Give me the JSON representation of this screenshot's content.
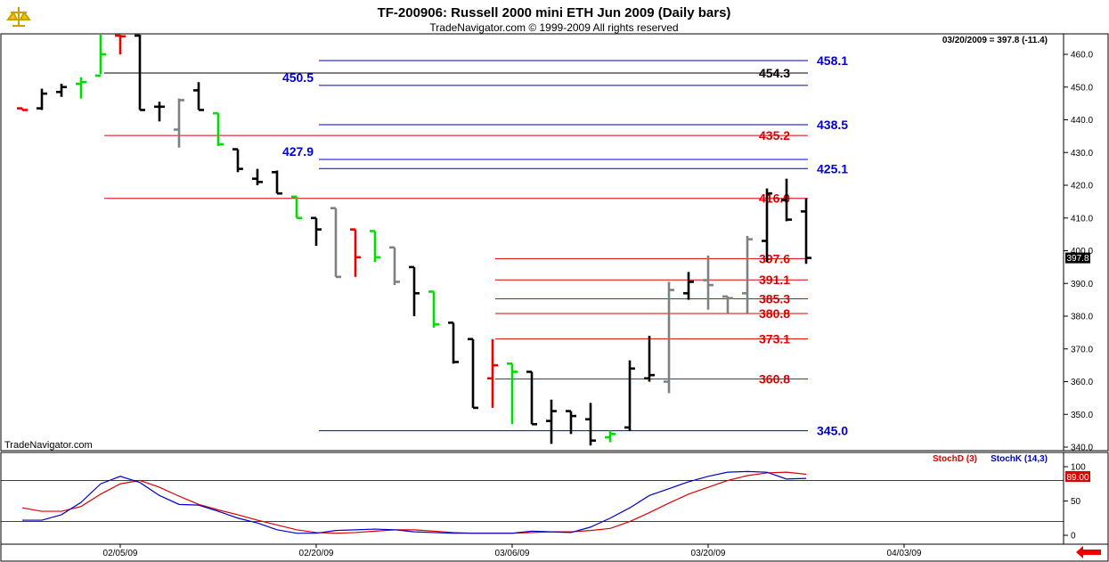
{
  "header": {
    "title": "TF-200906:  Russell 2000 mini ETH Jun 2009  (Daily bars)",
    "copyright": "TradeNavigator.com © 1999-2009 All rights reserved",
    "last_quote": "03/20/2009 = 397.8 (-11.4)",
    "watermark": "TradeNavigator.com",
    "logo_icon": "scales-logo-icon",
    "scroll_icon": "red-left-arrow-icon"
  },
  "colors": {
    "up_bar": "#00dd00",
    "down_bar": "#ee0000",
    "normal_bar": "#000000",
    "inside_bar": "#808080",
    "level_blue": "#0000cc",
    "level_red": "#dd0000",
    "level_black": "#000000",
    "stoch_d": "#dd0000",
    "stoch_k": "#0000cc"
  },
  "chart_data": [
    {
      "type": "ohlc",
      "title": "TF-200906:  Russell 2000 mini ETH Jun 2009  (Daily bars)",
      "y_ticks": [
        "340.0",
        "350.0",
        "360.0",
        "370.0",
        "380.0",
        "390.0",
        "400.0",
        "410.0",
        "420.0",
        "430.0",
        "440.0",
        "450.0",
        "460.0"
      ],
      "ylim": [
        338,
        466
      ],
      "x_ticks": [
        "02/05/09",
        "02/20/09",
        "03/06/09",
        "03/20/09",
        "04/03/09"
      ],
      "x_tick_index": [
        5,
        15,
        25,
        35,
        45
      ],
      "last_price_label": "397.8",
      "bars": [
        {
          "o": 443.5,
          "h": 443.5,
          "l": 443.0,
          "c": 443.0,
          "color": "down"
        },
        {
          "o": 443.5,
          "h": 449.5,
          "l": 443.0,
          "c": 448.0,
          "color": "normal"
        },
        {
          "o": 448.5,
          "h": 451.0,
          "l": 447.0,
          "c": 450.0,
          "color": "normal"
        },
        {
          "o": 451.0,
          "h": 453.0,
          "l": 446.5,
          "c": 451.5,
          "color": "up"
        },
        {
          "o": 453.5,
          "h": 467.0,
          "l": 454.0,
          "c": 460.0,
          "color": "up"
        },
        {
          "o": 466.5,
          "h": 467.0,
          "l": 460.0,
          "c": 465.5,
          "color": "down"
        },
        {
          "o": 467.0,
          "h": 467.0,
          "l": 443.0,
          "c": 443.0,
          "color": "normal"
        },
        {
          "o": 444.0,
          "h": 445.5,
          "l": 439.5,
          "c": 444.0,
          "color": "normal"
        },
        {
          "o": 437.0,
          "h": 446.5,
          "l": 431.5,
          "c": 446.0,
          "color": "inside"
        },
        {
          "o": 449.0,
          "h": 451.5,
          "l": 443.0,
          "c": 443.0,
          "color": "normal"
        },
        {
          "o": 442.0,
          "h": 442.0,
          "l": 432.0,
          "c": 432.5,
          "color": "up"
        },
        {
          "o": 431.0,
          "h": 431.0,
          "l": 424.0,
          "c": 425.0,
          "color": "normal"
        },
        {
          "o": 422.0,
          "h": 425.0,
          "l": 420.0,
          "c": 421.0,
          "color": "normal"
        },
        {
          "o": 424.0,
          "h": 424.5,
          "l": 417.5,
          "c": 417.5,
          "color": "normal"
        },
        {
          "o": 416.5,
          "h": 416.5,
          "l": 410.0,
          "c": 410.0,
          "color": "up"
        },
        {
          "o": 410.0,
          "h": 410.0,
          "l": 401.5,
          "c": 406.5,
          "color": "normal"
        },
        {
          "o": 413.0,
          "h": 413.0,
          "l": 392.0,
          "c": 392.0,
          "color": "inside"
        },
        {
          "o": 406.5,
          "h": 406.5,
          "l": 392.0,
          "c": 398.0,
          "color": "down"
        },
        {
          "o": 406.0,
          "h": 406.0,
          "l": 396.5,
          "c": 398.0,
          "color": "up"
        },
        {
          "o": 401.0,
          "h": 401.0,
          "l": 389.5,
          "c": 390.5,
          "color": "inside"
        },
        {
          "o": 395.0,
          "h": 395.0,
          "l": 380.0,
          "c": 387.0,
          "color": "normal"
        },
        {
          "o": 387.5,
          "h": 387.5,
          "l": 376.5,
          "c": 377.5,
          "color": "up"
        },
        {
          "o": 378.0,
          "h": 378.0,
          "l": 365.5,
          "c": 366.0,
          "color": "normal"
        },
        {
          "o": 373.0,
          "h": 373.0,
          "l": 352.0,
          "c": 352.0,
          "color": "normal"
        },
        {
          "o": 361.0,
          "h": 373.0,
          "l": 352.0,
          "c": 365.0,
          "color": "down"
        },
        {
          "o": 365.5,
          "h": 365.5,
          "l": 347.0,
          "c": 363.0,
          "color": "up"
        },
        {
          "o": 363.0,
          "h": 363.0,
          "l": 347.0,
          "c": 347.0,
          "color": "normal"
        },
        {
          "o": 348.0,
          "h": 354.5,
          "l": 341.0,
          "c": 351.0,
          "color": "normal"
        },
        {
          "o": 351.0,
          "h": 351.0,
          "l": 344.0,
          "c": 349.5,
          "color": "normal"
        },
        {
          "o": 348.5,
          "h": 353.5,
          "l": 340.5,
          "c": 342.0,
          "color": "normal"
        },
        {
          "o": 343.0,
          "h": 345.0,
          "l": 341.5,
          "c": 344.0,
          "color": "up"
        },
        {
          "o": 346.0,
          "h": 366.5,
          "l": 345.0,
          "c": 364.0,
          "color": "normal"
        },
        {
          "o": 361.0,
          "h": 374.0,
          "l": 360.0,
          "c": 362.0,
          "color": "normal"
        },
        {
          "o": 360.0,
          "h": 390.5,
          "l": 356.5,
          "c": 388.0,
          "color": "inside"
        },
        {
          "o": 387.0,
          "h": 393.5,
          "l": 385.0,
          "c": 390.5,
          "color": "normal"
        },
        {
          "o": 391.0,
          "h": 398.5,
          "l": 382.0,
          "c": 389.5,
          "color": "inside"
        },
        {
          "o": 386.0,
          "h": 386.0,
          "l": 381.0,
          "c": 385.5,
          "color": "inside"
        },
        {
          "o": 387.0,
          "h": 404.5,
          "l": 381.0,
          "c": 403.5,
          "color": "inside"
        },
        {
          "o": 403.0,
          "h": 419.0,
          "l": 396.5,
          "c": 417.5,
          "color": "normal"
        },
        {
          "o": 415.5,
          "h": 422.0,
          "l": 409.0,
          "c": 409.5,
          "color": "normal"
        },
        {
          "o": 412.0,
          "h": 416.0,
          "l": 396.0,
          "c": 397.8,
          "color": "normal"
        }
      ],
      "levels": [
        {
          "value": 458.1,
          "label": "458.1",
          "color": "blue",
          "from": 27,
          "label_at": "right"
        },
        {
          "value": 454.3,
          "label": "454.3",
          "color": "black",
          "from": 4,
          "label_at": "middle"
        },
        {
          "value": 450.5,
          "label": "450.5",
          "color": "blue",
          "from": 27,
          "label_at": "left"
        },
        {
          "value": 438.5,
          "label": "438.5",
          "color": "blue",
          "from": 27,
          "label_at": "right"
        },
        {
          "value": 435.2,
          "label": "435.2",
          "color": "red",
          "from": 4,
          "label_at": "middle"
        },
        {
          "value": 427.9,
          "label": "427.9",
          "color": "blue",
          "from": 27,
          "label_at": "left"
        },
        {
          "value": 425.1,
          "label": "425.1",
          "color": "blue",
          "from": 27,
          "label_at": "right"
        },
        {
          "value": 416.0,
          "label": "416.0",
          "color": "red",
          "from": 4,
          "label_at": "middle"
        },
        {
          "value": 397.6,
          "label": "397.6",
          "color": "red",
          "from": 31,
          "label_at": "middle"
        },
        {
          "value": 391.1,
          "label": "391.1",
          "color": "red",
          "from": 31,
          "label_at": "middle"
        },
        {
          "value": 385.3,
          "label": "385.3",
          "color": "red",
          "from": 31,
          "label_at": "middle"
        },
        {
          "value": 380.8,
          "label": "380.8",
          "color": "red",
          "from": 31,
          "label_at": "middle"
        },
        {
          "value": 373.1,
          "label": "373.1",
          "color": "red",
          "from": 31,
          "label_at": "middle"
        },
        {
          "value": 360.8,
          "label": "360.8",
          "color": "red",
          "from": 31,
          "label_at": "middle"
        },
        {
          "value": 345.0,
          "label": "345.0",
          "color": "blue",
          "from": 27,
          "label_at": "right"
        }
      ]
    },
    {
      "type": "line",
      "legend": [
        "StochD (3)",
        "StochK (14,3)"
      ],
      "y_ticks": [
        "0",
        "50",
        "100"
      ],
      "ylim": [
        -5,
        105
      ],
      "reference_lines": [
        20,
        80
      ],
      "last_value_label": "89.00",
      "series": [
        {
          "name": "StochD (3)",
          "color": "red",
          "values": [
            40,
            35,
            35,
            42,
            60,
            75,
            80,
            70,
            57,
            45,
            37,
            30,
            22,
            15,
            8,
            4,
            3,
            4,
            6,
            8,
            8,
            6,
            4,
            3,
            3,
            3,
            4,
            5,
            5,
            7,
            10,
            20,
            33,
            47,
            60,
            70,
            80,
            87,
            91,
            92,
            89
          ]
        },
        {
          "name": "StochK (14,3)",
          "color": "blue",
          "values": [
            22,
            22,
            30,
            48,
            75,
            86,
            77,
            58,
            45,
            44,
            35,
            25,
            18,
            8,
            3,
            3,
            7,
            8,
            9,
            8,
            5,
            4,
            3,
            3,
            3,
            3,
            6,
            5,
            4,
            12,
            25,
            40,
            58,
            68,
            78,
            86,
            92,
            93,
            92,
            82,
            83
          ]
        }
      ]
    }
  ]
}
